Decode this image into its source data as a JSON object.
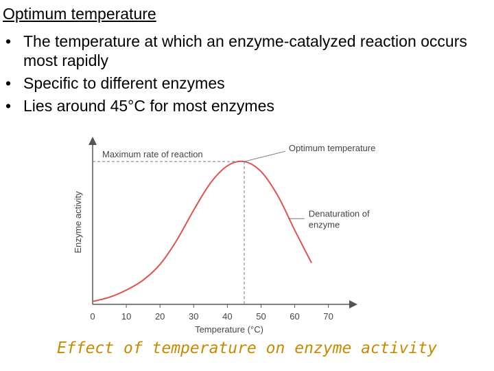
{
  "slide": {
    "heading": "Optimum temperature",
    "bullets": [
      "The temperature at which an enzyme-catalyzed reaction occurs most rapidly",
      "Specific to different enzymes",
      "Lies around 45°C for most enzymes"
    ],
    "caption": "Effect of temperature on enzyme activity"
  },
  "colors": {
    "curve": "#e0524b",
    "axis": "#555555",
    "caption": "#c98a00"
  },
  "chart_data": {
    "type": "line",
    "title": "",
    "xlabel": "Temperature (°C)",
    "ylabel": "Enzyme activity",
    "xlim": [
      0,
      77
    ],
    "ylim": [
      0,
      1.15
    ],
    "x_ticks": [
      0,
      10,
      20,
      30,
      40,
      50,
      60,
      70
    ],
    "grid": false,
    "series": [
      {
        "x": [
          0,
          5,
          10,
          15,
          20,
          25,
          30,
          35,
          40,
          45,
          50,
          55,
          60,
          65
        ],
        "y": [
          0.02,
          0.05,
          0.1,
          0.17,
          0.28,
          0.45,
          0.66,
          0.85,
          0.97,
          1.0,
          0.93,
          0.76,
          0.52,
          0.29
        ]
      }
    ],
    "annotations": {
      "max_rate": "Maximum rate of reaction",
      "optimum": "Optimum temperature",
      "denaturation_line1": "Denaturation of",
      "denaturation_line2": "enzyme"
    },
    "optimum_x": 45
  }
}
